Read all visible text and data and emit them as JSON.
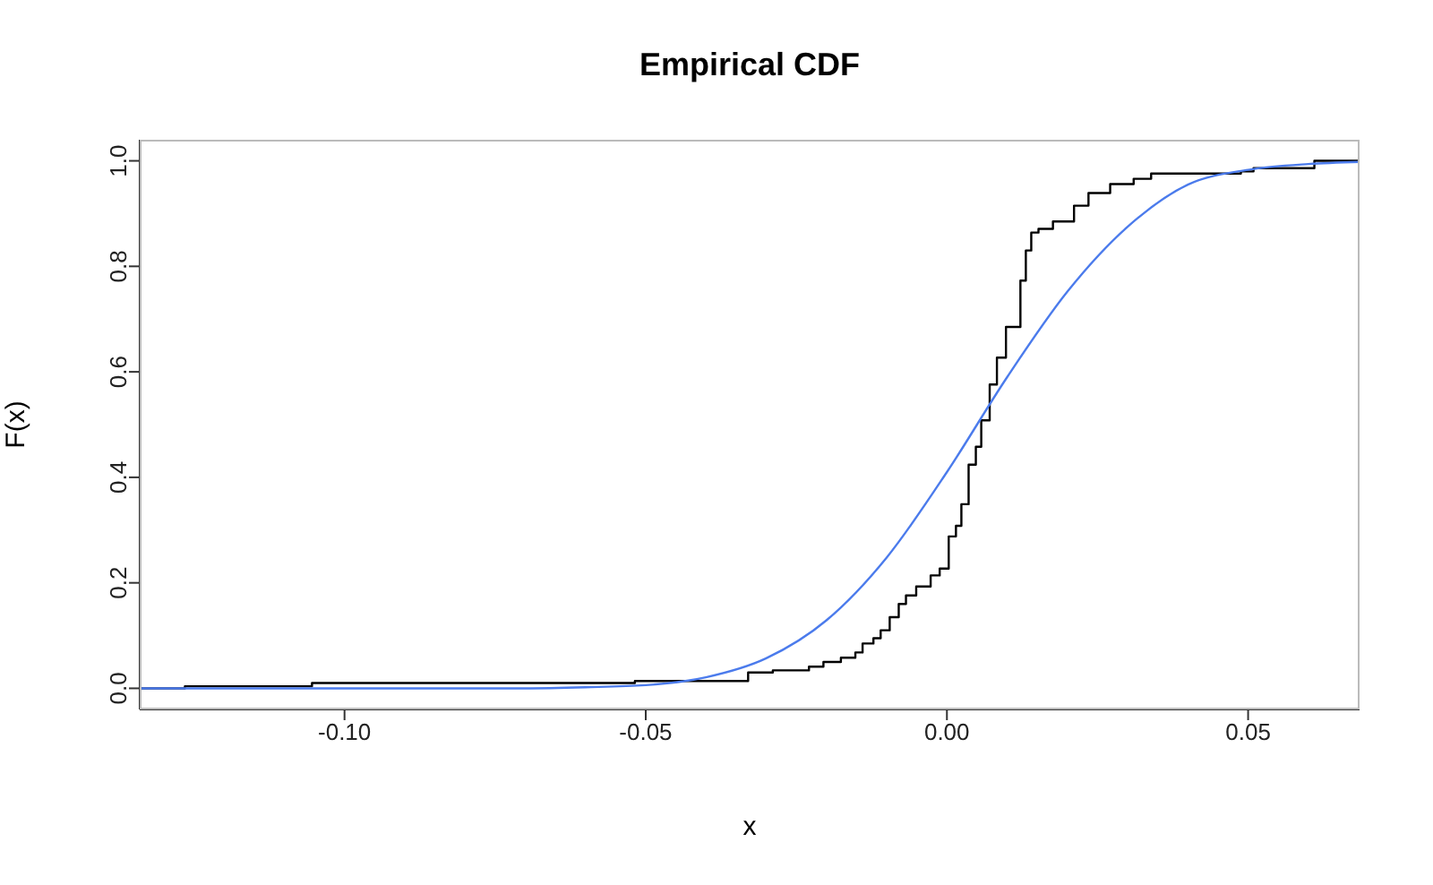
{
  "chart_data": {
    "type": "step",
    "title": "Empirical CDF",
    "xlabel": "x",
    "ylabel": "F(x)",
    "xlim": [
      -0.134,
      0.0685
    ],
    "ylim": [
      -0.04,
      1.04
    ],
    "xticks": [
      {
        "value": -0.1,
        "label": "-0.10"
      },
      {
        "value": -0.05,
        "label": "-0.05"
      },
      {
        "value": 0,
        "label": "0.00"
      },
      {
        "value": 0.05,
        "label": "0.05"
      }
    ],
    "yticks": [
      {
        "value": 0,
        "label": "0.0"
      },
      {
        "value": 0.2,
        "label": "0.2"
      },
      {
        "value": 0.4,
        "label": "0.4"
      },
      {
        "value": 0.6,
        "label": "0.6"
      },
      {
        "value": 0.8,
        "label": "0.8"
      },
      {
        "value": 1,
        "label": "1.0"
      }
    ],
    "series": [
      {
        "color": "#000000",
        "x": [
          -0.134,
          -0.1265,
          -0.1054,
          -0.0518,
          -0.033,
          -0.0289,
          -0.0229,
          -0.0205,
          -0.0176,
          -0.0152,
          -0.014,
          -0.0122,
          -0.011,
          -0.0095,
          -0.008,
          -0.0068,
          -0.0051,
          -0.0027,
          -0.0012,
          0.0003,
          0.0015,
          0.0024,
          0.0036,
          0.0048,
          0.0057,
          0.0071,
          0.0083,
          0.0098,
          0.0122,
          0.0131,
          0.014,
          0.0152,
          0.0176,
          0.0211,
          0.0235,
          0.0271,
          0.031,
          0.0339,
          0.0488,
          0.0509,
          0.061,
          0.0685
        ],
        "values": [
          0,
          0.004,
          0.01,
          0.014,
          0.03,
          0.034,
          0.041,
          0.05,
          0.058,
          0.068,
          0.085,
          0.095,
          0.11,
          0.135,
          0.16,
          0.176,
          0.193,
          0.214,
          0.227,
          0.288,
          0.308,
          0.349,
          0.424,
          0.458,
          0.508,
          0.576,
          0.627,
          0.685,
          0.773,
          0.83,
          0.864,
          0.871,
          0.885,
          0.915,
          0.939,
          0.956,
          0.966,
          0.976,
          0.98,
          0.986,
          1,
          1
        ]
      },
      {
        "type": "line",
        "color": "#4b7bec",
        "x": [
          -0.134,
          -0.07,
          -0.06,
          -0.05,
          -0.04,
          -0.03,
          -0.02,
          -0.01,
          0,
          0.01,
          0.02,
          0.03,
          0.04,
          0.05,
          0.06,
          0.0685
        ],
        "values": [
          0,
          0,
          0.002,
          0.006,
          0.021,
          0.057,
          0.129,
          0.248,
          0.41,
          0.59,
          0.752,
          0.875,
          0.955,
          0.983,
          0.994,
          0.998
        ]
      }
    ]
  }
}
